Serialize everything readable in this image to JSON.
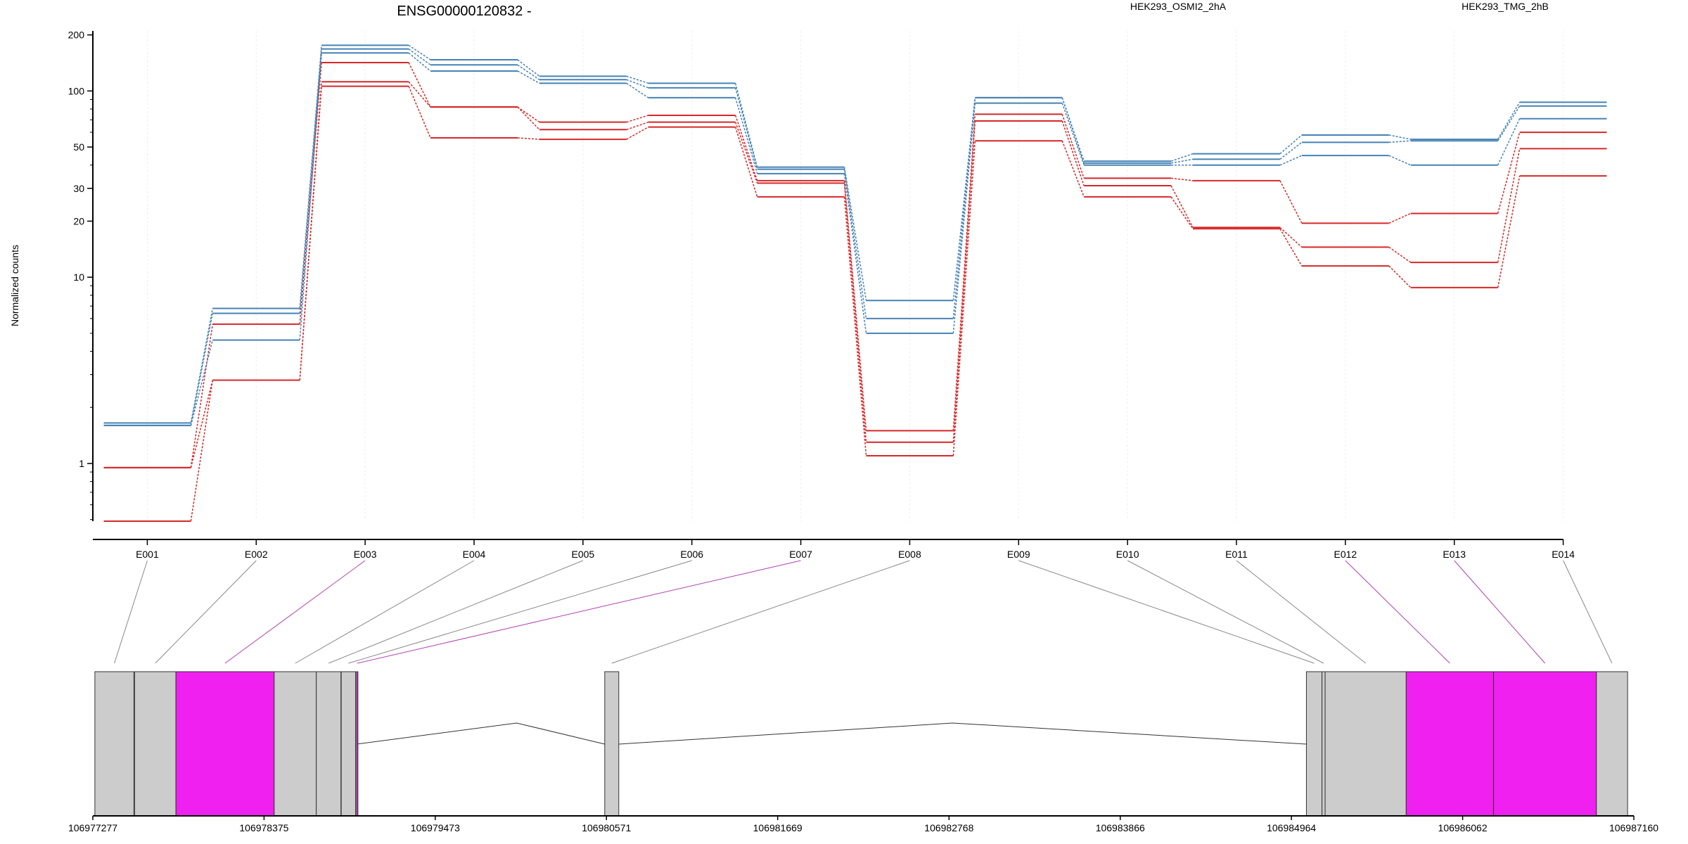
{
  "chart_data": {
    "type": "line",
    "title": "ENSG00000120832 -",
    "ylabel": "Normalized counts",
    "y_scale": "log",
    "ylim": [
      0.49,
      210
    ],
    "y_ticks": [
      {
        "v": 1,
        "label": "1"
      },
      {
        "v": 10,
        "label": "10"
      },
      {
        "v": 20,
        "label": "20"
      },
      {
        "v": 30,
        "label": "30"
      },
      {
        "v": 50,
        "label": "50"
      },
      {
        "v": 100,
        "label": "100"
      },
      {
        "v": 200,
        "label": "200"
      }
    ],
    "categories": [
      "E001",
      "E002",
      "E003",
      "E004",
      "E005",
      "E006",
      "E007",
      "E008",
      "E009",
      "E010",
      "E011",
      "E012",
      "E013",
      "E014"
    ],
    "groups": [
      {
        "name": "HEK293_OSMI2_2hA",
        "color": "#d62728"
      },
      {
        "name": "HEK293_TMG_2hB",
        "color": "#4682b4"
      }
    ],
    "series": [
      {
        "group": "HEK293_OSMI2_2hA",
        "values": [
          0.95,
          5.6,
          142,
          82,
          68,
          74,
          33,
          1.5,
          75,
          34,
          33,
          19.5,
          22,
          60
        ]
      },
      {
        "group": "HEK293_OSMI2_2hA",
        "values": [
          0.95,
          2.8,
          112,
          82,
          62,
          68,
          32,
          1.3,
          69,
          31,
          18.5,
          14.5,
          12,
          49
        ]
      },
      {
        "group": "HEK293_OSMI2_2hA",
        "values": [
          0.49,
          2.8,
          106,
          56,
          55,
          64,
          27,
          1.1,
          54,
          27,
          18.2,
          11.5,
          8.8,
          35
        ]
      },
      {
        "group": "HEK293_TMG_2hB",
        "values": [
          1.65,
          6.8,
          176,
          147,
          120,
          110,
          39,
          7.5,
          92,
          42,
          46,
          58,
          55,
          87
        ]
      },
      {
        "group": "HEK293_TMG_2hB",
        "values": [
          1.6,
          6.4,
          168,
          138,
          115,
          104,
          38,
          6.0,
          92,
          41,
          43,
          53,
          54,
          83
        ]
      },
      {
        "group": "HEK293_TMG_2hB",
        "values": [
          1.6,
          4.6,
          160,
          128,
          110,
          92,
          36,
          5.0,
          86,
          40,
          40,
          45,
          40,
          71
        ]
      }
    ],
    "genome_axis": {
      "ticks": [
        "106977277",
        "106978375",
        "106979473",
        "106980571",
        "106981669",
        "106982768",
        "106983866",
        "106984964",
        "106986062",
        "106987160"
      ],
      "range": [
        106977277,
        106987160
      ]
    },
    "exons": [
      {
        "id": "E001",
        "start": 106977290,
        "end": 106977540,
        "highlight": false
      },
      {
        "id": "E002",
        "start": 106977545,
        "end": 106977810,
        "highlight": false
      },
      {
        "id": "E003",
        "start": 106977810,
        "end": 106978440,
        "highlight": true
      },
      {
        "id": "E004",
        "start": 106978440,
        "end": 106978710,
        "highlight": false
      },
      {
        "id": "E005",
        "start": 106978710,
        "end": 106978868,
        "highlight": false
      },
      {
        "id": "E006",
        "start": 106978870,
        "end": 106978962,
        "highlight": false
      },
      {
        "id": "E007",
        "start": 106978968,
        "end": 106978972,
        "highlight": true
      },
      {
        "id": "E008",
        "start": 106980560,
        "end": 106980650,
        "highlight": false
      },
      {
        "id": "E009",
        "start": 106985060,
        "end": 106985160,
        "highlight": false
      },
      {
        "id": "E010",
        "start": 106985160,
        "end": 106985180,
        "highlight": false
      },
      {
        "id": "E011",
        "start": 106985180,
        "end": 106985700,
        "highlight": false
      },
      {
        "id": "E012",
        "start": 106985700,
        "end": 106986260,
        "highlight": true
      },
      {
        "id": "E013",
        "start": 106986260,
        "end": 106986920,
        "highlight": true
      },
      {
        "id": "E014",
        "start": 106986920,
        "end": 106987120,
        "highlight": false
      }
    ],
    "introns": [
      [
        106978970,
        106980560,
        106979995
      ],
      [
        106980650,
        106985060,
        106982790
      ]
    ],
    "exon_colors": {
      "normal": "#cccccc",
      "highlight": "#f020f0"
    },
    "connector_colors": {
      "normal": "#888888",
      "highlight": "#b040b0"
    }
  }
}
